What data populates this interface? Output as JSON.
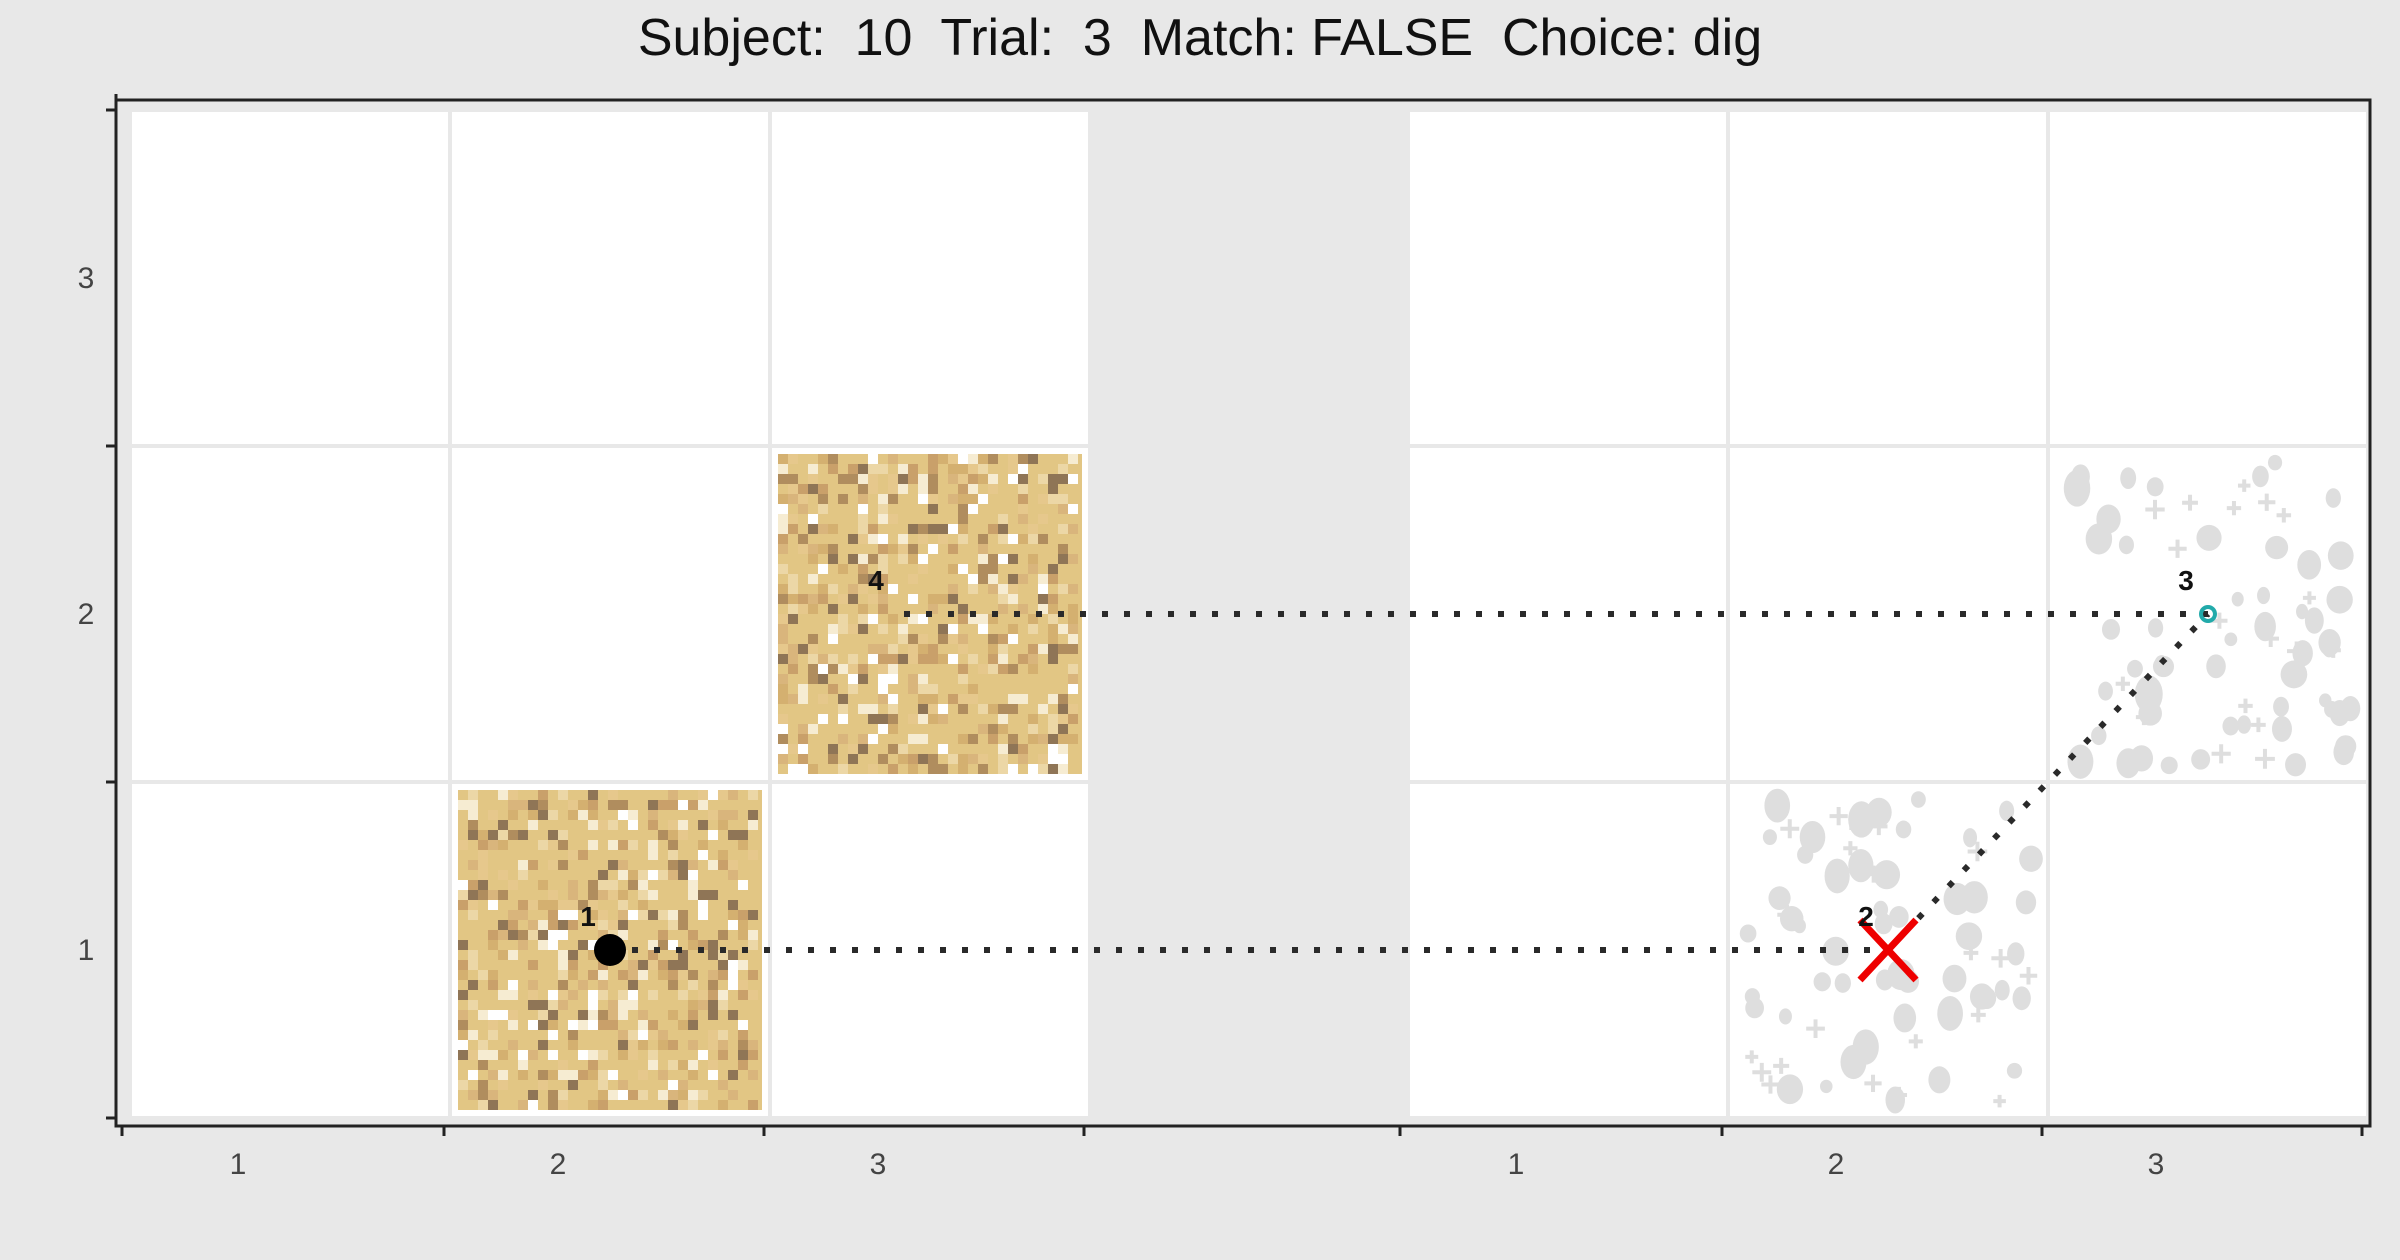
{
  "chart_data": {
    "type": "scatter",
    "title": "Subject:  10  Trial:  3  Match: FALSE  Choice: dig",
    "subject": 10,
    "trial": 3,
    "match": "FALSE",
    "choice": "dig",
    "panels": [
      {
        "name": "left",
        "x_ticks": [
          "1",
          "2",
          "3"
        ],
        "y_ticks": [
          "1",
          "2",
          "3"
        ],
        "grid": true,
        "textured_cells": [
          {
            "col": 2,
            "row": 1,
            "texture": "sand"
          },
          {
            "col": 3,
            "row": 2,
            "texture": "sand"
          }
        ]
      },
      {
        "name": "right",
        "x_ticks": [
          "1",
          "2",
          "3"
        ],
        "grid": true,
        "textured_cells": [
          {
            "col": 2,
            "row": 1,
            "texture": "gravel"
          },
          {
            "col": 3,
            "row": 2,
            "texture": "gravel"
          }
        ]
      }
    ],
    "points": [
      {
        "step": "1",
        "panel": "left",
        "x": 1.5,
        "y": 0.5,
        "marker": "filled-circle",
        "color": "#000000"
      },
      {
        "step": "2",
        "panel": "right",
        "x": 1.5,
        "y": 0.5,
        "marker": "x",
        "color": "#ee0000"
      },
      {
        "step": "3",
        "panel": "right",
        "x": 2.5,
        "y": 1.5,
        "marker": "ring",
        "color": "#22aaaa"
      },
      {
        "step": "4",
        "panel": "left",
        "x": 2.4,
        "y": 1.5,
        "marker": "none",
        "color": "#000000"
      }
    ],
    "paths": [
      {
        "from_step": "1",
        "to_step": "2",
        "style": "dotted"
      },
      {
        "from_step": "2",
        "to_step": "3",
        "style": "dotted"
      },
      {
        "from_step": "3",
        "to_step": "4",
        "style": "dotted"
      }
    ],
    "colors": {
      "background": "#e8e8e8",
      "cell": "#ffffff",
      "grid": "#e4e4e4",
      "sand": [
        "#e2c684",
        "#d9b57c",
        "#c9a06a",
        "#b08d5e",
        "#8f7556",
        "#ecd7a6",
        "#f6ecd2",
        "#ffffff",
        "#e6c88c",
        "#d4b070"
      ],
      "gravel": "#dedede",
      "path": "#2a2a2a",
      "x_marker": "#ee0000",
      "ring_marker": "#22aaaa"
    }
  }
}
